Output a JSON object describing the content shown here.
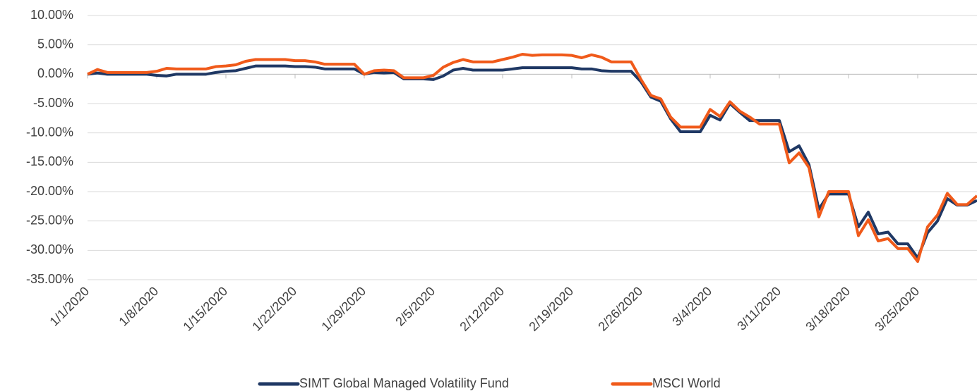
{
  "chart_data": {
    "type": "line",
    "x": [
      "1/1/2020",
      "1/2/2020",
      "1/3/2020",
      "1/4/2020",
      "1/5/2020",
      "1/6/2020",
      "1/7/2020",
      "1/8/2020",
      "1/9/2020",
      "1/10/2020",
      "1/11/2020",
      "1/12/2020",
      "1/13/2020",
      "1/14/2020",
      "1/15/2020",
      "1/16/2020",
      "1/17/2020",
      "1/18/2020",
      "1/19/2020",
      "1/20/2020",
      "1/21/2020",
      "1/22/2020",
      "1/23/2020",
      "1/24/2020",
      "1/25/2020",
      "1/26/2020",
      "1/27/2020",
      "1/28/2020",
      "1/29/2020",
      "1/30/2020",
      "1/31/2020",
      "2/1/2020",
      "2/2/2020",
      "2/3/2020",
      "2/4/2020",
      "2/5/2020",
      "2/6/2020",
      "2/7/2020",
      "2/8/2020",
      "2/9/2020",
      "2/10/2020",
      "2/11/2020",
      "2/12/2020",
      "2/13/2020",
      "2/14/2020",
      "2/15/2020",
      "2/16/2020",
      "2/17/2020",
      "2/18/2020",
      "2/19/2020",
      "2/20/2020",
      "2/21/2020",
      "2/22/2020",
      "2/23/2020",
      "2/24/2020",
      "2/25/2020",
      "2/26/2020",
      "2/27/2020",
      "2/28/2020",
      "2/29/2020",
      "3/1/2020",
      "3/2/2020",
      "3/3/2020",
      "3/4/2020",
      "3/5/2020",
      "3/6/2020",
      "3/7/2020",
      "3/8/2020",
      "3/9/2020",
      "3/10/2020",
      "3/11/2020",
      "3/12/2020",
      "3/13/2020",
      "3/14/2020",
      "3/15/2020",
      "3/16/2020",
      "3/17/2020",
      "3/18/2020",
      "3/19/2020",
      "3/20/2020",
      "3/21/2020",
      "3/22/2020",
      "3/23/2020",
      "3/24/2020",
      "3/25/2020",
      "3/26/2020",
      "3/27/2020",
      "3/28/2020",
      "3/29/2020",
      "3/30/2020",
      "3/31/2020"
    ],
    "series": [
      {
        "name": "SIMT Global Managed Volatility Fund",
        "color": "#1f3864",
        "values": [
          0,
          0.2,
          0,
          0,
          0,
          0,
          0,
          -0.2,
          -0.3,
          0,
          0,
          0,
          0,
          0.3,
          0.5,
          0.6,
          1.0,
          1.4,
          1.4,
          1.4,
          1.4,
          1.3,
          1.3,
          1.2,
          0.9,
          0.9,
          0.9,
          0.9,
          0,
          0.3,
          0.2,
          0.3,
          -0.8,
          -0.8,
          -0.8,
          -0.9,
          -0.3,
          0.7,
          1.0,
          0.7,
          0.7,
          0.7,
          0.7,
          0.9,
          1.1,
          1.1,
          1.1,
          1.1,
          1.1,
          1.1,
          0.9,
          0.9,
          0.6,
          0.5,
          0.5,
          0.5,
          -1.3,
          -3.9,
          -4.6,
          -7.6,
          -9.8,
          -9.8,
          -9.8,
          -7.0,
          -7.8,
          -5.0,
          -6.5,
          -7.9,
          -7.9,
          -7.9,
          -7.9,
          -13.2,
          -12.2,
          -15.4,
          -23.0,
          -20.4,
          -20.4,
          -20.4,
          -26.0,
          -23.5,
          -27.2,
          -26.9,
          -28.9,
          -28.9,
          -31.3,
          -27.0,
          -25.0,
          -21.2,
          -22.3,
          -22.3,
          -21.5
        ]
      },
      {
        "name": "MSCI World",
        "color": "#f05a1a",
        "values": [
          0,
          0.8,
          0.3,
          0.3,
          0.3,
          0.3,
          0.3,
          0.5,
          1.0,
          0.9,
          0.9,
          0.9,
          0.9,
          1.3,
          1.4,
          1.6,
          2.2,
          2.5,
          2.5,
          2.5,
          2.5,
          2.3,
          2.3,
          2.1,
          1.7,
          1.7,
          1.7,
          1.7,
          0,
          0.6,
          0.7,
          0.6,
          -0.6,
          -0.6,
          -0.6,
          -0.2,
          1.2,
          2.0,
          2.5,
          2.1,
          2.1,
          2.1,
          2.5,
          2.9,
          3.4,
          3.2,
          3.3,
          3.3,
          3.3,
          3.2,
          2.8,
          3.3,
          2.9,
          2.1,
          2.1,
          2.1,
          -0.9,
          -3.6,
          -4.2,
          -7.3,
          -9,
          -9,
          -9,
          -6.0,
          -7.2,
          -4.7,
          -6.3,
          -7.3,
          -8.5,
          -8.5,
          -8.5,
          -15.1,
          -13.4,
          -15.9,
          -24.3,
          -20,
          -20,
          -20,
          -27.5,
          -24.8,
          -28.4,
          -28,
          -29.7,
          -29.7,
          -31.9,
          -26,
          -24,
          -20.3,
          -22.2,
          -22.2,
          -20.7
        ]
      }
    ],
    "ylim": [
      -35,
      10
    ],
    "yticks": [
      {
        "value": 10,
        "label": "10.00%"
      },
      {
        "value": 5,
        "label": "5.00%"
      },
      {
        "value": 0,
        "label": "0.00%"
      },
      {
        "value": -5,
        "label": "-5.00%"
      },
      {
        "value": -10,
        "label": "-10.00%"
      },
      {
        "value": -15,
        "label": "-15.00%"
      },
      {
        "value": -20,
        "label": "-20.00%"
      },
      {
        "value": -25,
        "label": "-25.00%"
      },
      {
        "value": -30,
        "label": "-30.00%"
      },
      {
        "value": -35,
        "label": "-35.00%"
      }
    ],
    "grid": true,
    "legend": "bottom"
  }
}
